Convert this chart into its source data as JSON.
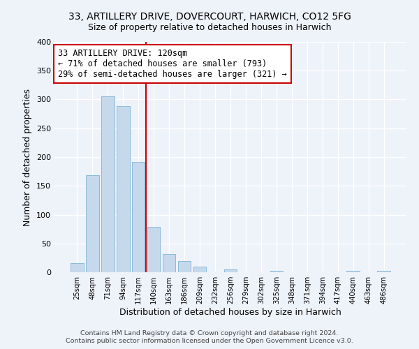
{
  "title": "33, ARTILLERY DRIVE, DOVERCOURT, HARWICH, CO12 5FG",
  "subtitle": "Size of property relative to detached houses in Harwich",
  "xlabel": "Distribution of detached houses by size in Harwich",
  "ylabel": "Number of detached properties",
  "bar_color": "#c6d9ec",
  "bar_edge_color": "#7fb3d3",
  "background_color": "#eef2f9",
  "plot_bg_color": "#eef2f9",
  "grid_color": "#ffffff",
  "categories": [
    "25sqm",
    "48sqm",
    "71sqm",
    "94sqm",
    "117sqm",
    "140sqm",
    "163sqm",
    "186sqm",
    "209sqm",
    "232sqm",
    "256sqm",
    "279sqm",
    "302sqm",
    "325sqm",
    "348sqm",
    "371sqm",
    "394sqm",
    "417sqm",
    "440sqm",
    "463sqm",
    "486sqm"
  ],
  "values": [
    16,
    168,
    305,
    288,
    191,
    79,
    31,
    19,
    10,
    0,
    5,
    0,
    0,
    3,
    0,
    0,
    0,
    0,
    2,
    0,
    2
  ],
  "ylim": [
    0,
    400
  ],
  "yticks": [
    0,
    50,
    100,
    150,
    200,
    250,
    300,
    350,
    400
  ],
  "vline_index": 4.5,
  "vline_color": "#cc0000",
  "annotation_line0": "33 ARTILLERY DRIVE: 120sqm",
  "annotation_line1": "← 71% of detached houses are smaller (793)",
  "annotation_line2": "29% of semi-detached houses are larger (321) →",
  "annotation_box_color": "white",
  "annotation_box_edge": "#cc0000",
  "footer1": "Contains HM Land Registry data © Crown copyright and database right 2024.",
  "footer2": "Contains public sector information licensed under the Open Government Licence v3.0."
}
